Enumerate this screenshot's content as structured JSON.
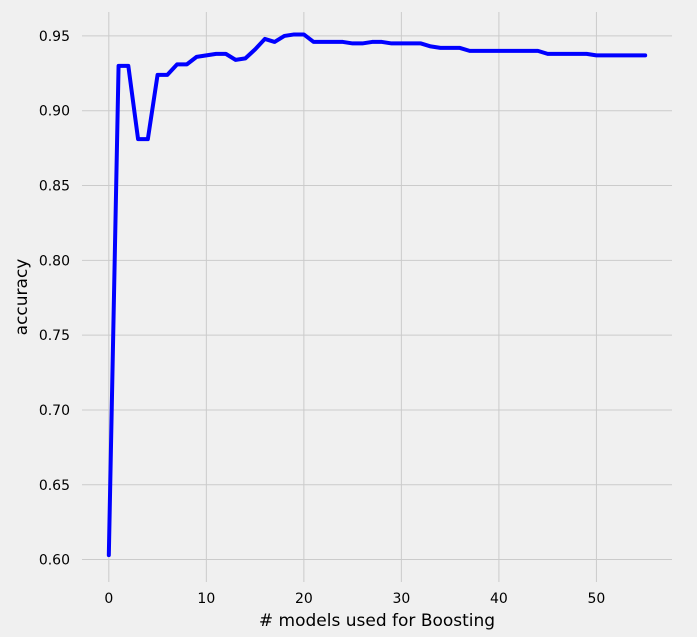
{
  "chart_data": {
    "type": "line",
    "xlabel": "# models used for Boosting",
    "ylabel": "accuracy",
    "xlim": [
      -2.75,
      57.75
    ],
    "ylim": [
      0.585,
      0.966
    ],
    "xticks": [
      0,
      10,
      20,
      30,
      40,
      50
    ],
    "yticks": [
      0.6,
      0.65,
      0.7,
      0.75,
      0.8,
      0.85,
      0.9,
      0.95
    ],
    "ytick_labels": [
      "0.60",
      "0.65",
      "0.70",
      "0.75",
      "0.80",
      "0.85",
      "0.90",
      "0.95"
    ],
    "grid": true,
    "line_color": "#0000ff",
    "background": "#f0f0f0",
    "x": [
      0,
      1,
      2,
      3,
      4,
      5,
      6,
      7,
      8,
      9,
      10,
      11,
      12,
      13,
      14,
      15,
      16,
      17,
      18,
      19,
      20,
      21,
      22,
      23,
      24,
      25,
      26,
      27,
      28,
      29,
      30,
      31,
      32,
      33,
      34,
      35,
      36,
      37,
      38,
      39,
      40,
      41,
      42,
      43,
      44,
      45,
      46,
      47,
      48,
      49,
      50,
      51,
      52,
      53,
      54,
      55
    ],
    "series": [
      {
        "values": [
          0.603,
          0.93,
          0.93,
          0.881,
          0.881,
          0.924,
          0.924,
          0.931,
          0.931,
          0.936,
          0.937,
          0.938,
          0.938,
          0.934,
          0.935,
          0.941,
          0.948,
          0.946,
          0.95,
          0.951,
          0.951,
          0.946,
          0.946,
          0.946,
          0.946,
          0.945,
          0.945,
          0.946,
          0.946,
          0.945,
          0.945,
          0.945,
          0.945,
          0.943,
          0.942,
          0.942,
          0.942,
          0.94,
          0.94,
          0.94,
          0.94,
          0.94,
          0.94,
          0.94,
          0.94,
          0.938,
          0.938,
          0.938,
          0.938,
          0.938,
          0.937,
          0.937,
          0.937,
          0.937,
          0.937,
          0.937
        ]
      }
    ]
  }
}
